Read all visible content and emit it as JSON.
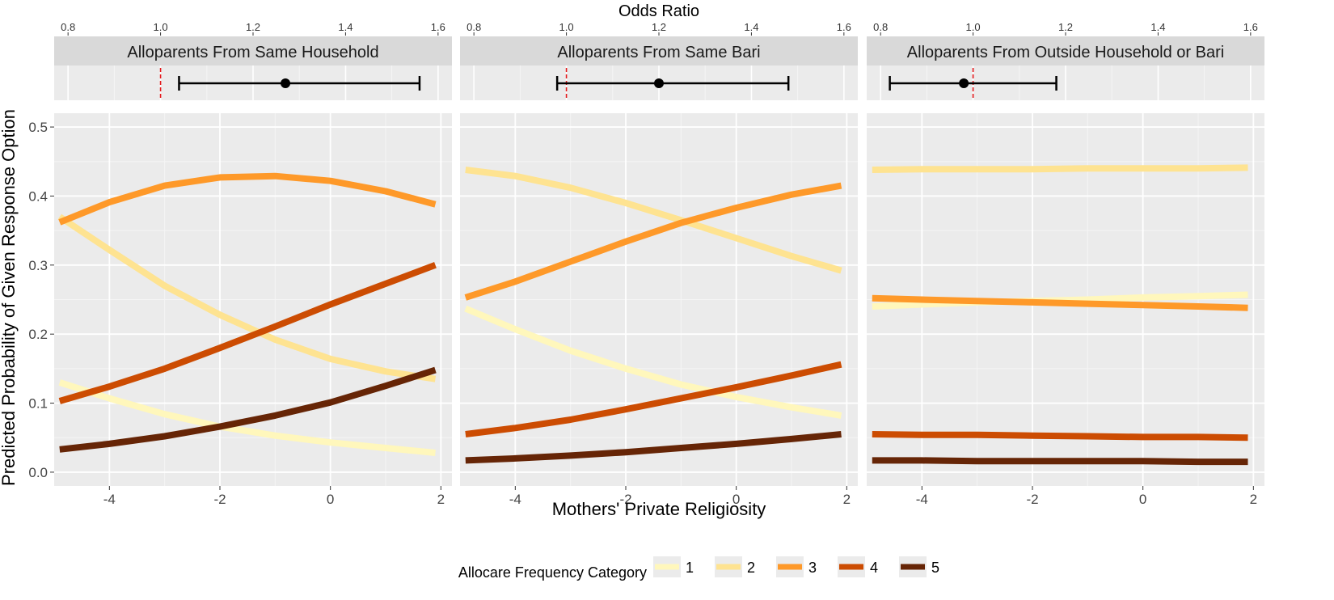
{
  "chart_data": {
    "type": "line",
    "top_axis_title": "Odds Ratio",
    "xlabel": "Mothers' Private Religiosity",
    "ylabel": "Predicted Probability of Given Response Option",
    "or_ticks": [
      0.8,
      1.0,
      1.2,
      1.4,
      1.6
    ],
    "or_tick_labels": [
      "0.8",
      "1.0",
      "1.2",
      "1.4",
      "1.6"
    ],
    "or_reference": 1.0,
    "x_ticks": [
      -4,
      -2,
      0,
      2
    ],
    "x_tick_labels": [
      "-4",
      "-2",
      "0",
      "2"
    ],
    "y_ticks": [
      0.0,
      0.1,
      0.2,
      0.3,
      0.4,
      0.5
    ],
    "y_tick_labels": [
      "0.0",
      "0.1",
      "0.2",
      "0.3",
      "0.4",
      "0.5"
    ],
    "xlim": [
      -5.0,
      2.2
    ],
    "ylim": [
      -0.02,
      0.52
    ],
    "x": [
      -4.9,
      -4.0,
      -3.0,
      -2.0,
      -1.0,
      0.0,
      1.0,
      1.9
    ],
    "legend": {
      "title": "Allocare Frequency Category",
      "position": "bottom",
      "items": [
        {
          "label": "1",
          "color": "#fff7bc"
        },
        {
          "label": "2",
          "color": "#fee391"
        },
        {
          "label": "3",
          "color": "#fe9929"
        },
        {
          "label": "4",
          "color": "#cc4c02"
        },
        {
          "label": "5",
          "color": "#662506"
        }
      ]
    },
    "panels": [
      {
        "title": "Alloparents From Same Household",
        "odds_ratio": {
          "estimate": 1.27,
          "lower": 1.04,
          "upper": 1.56
        },
        "series": [
          {
            "name": "1",
            "color": "#fff7bc",
            "values": [
              0.13,
              0.107,
              0.084,
              0.066,
              0.053,
              0.043,
              0.035,
              0.028
            ]
          },
          {
            "name": "2",
            "color": "#fee391",
            "values": [
              0.37,
              0.322,
              0.27,
              0.228,
              0.192,
              0.164,
              0.146,
              0.135
            ]
          },
          {
            "name": "3",
            "color": "#fe9929",
            "values": [
              0.362,
              0.391,
              0.415,
              0.427,
              0.429,
              0.422,
              0.407,
              0.388
            ]
          },
          {
            "name": "4",
            "color": "#cc4c02",
            "values": [
              0.103,
              0.124,
              0.15,
              0.18,
              0.211,
              0.243,
              0.273,
              0.3
            ]
          },
          {
            "name": "5",
            "color": "#662506",
            "values": [
              0.033,
              0.041,
              0.052,
              0.066,
              0.082,
              0.101,
              0.125,
              0.148
            ]
          }
        ]
      },
      {
        "title": "Alloparents From Same Bari",
        "odds_ratio": {
          "estimate": 1.2,
          "lower": 0.98,
          "upper": 1.48
        },
        "series": [
          {
            "name": "1",
            "color": "#fff7bc",
            "values": [
              0.237,
              0.207,
              0.176,
              0.15,
              0.127,
              0.109,
              0.094,
              0.082
            ]
          },
          {
            "name": "2",
            "color": "#fee391",
            "values": [
              0.438,
              0.429,
              0.412,
              0.39,
              0.365,
              0.339,
              0.313,
              0.292
            ]
          },
          {
            "name": "3",
            "color": "#fe9929",
            "values": [
              0.253,
              0.276,
              0.305,
              0.334,
              0.361,
              0.383,
              0.402,
              0.415
            ]
          },
          {
            "name": "4",
            "color": "#cc4c02",
            "values": [
              0.055,
              0.064,
              0.076,
              0.091,
              0.107,
              0.123,
              0.14,
              0.156
            ]
          },
          {
            "name": "5",
            "color": "#662506",
            "values": [
              0.017,
              0.02,
              0.024,
              0.029,
              0.035,
              0.041,
              0.048,
              0.055
            ]
          }
        ]
      },
      {
        "title": "Alloparents From Outside Household or Bari",
        "odds_ratio": {
          "estimate": 0.98,
          "lower": 0.82,
          "upper": 1.18
        },
        "series": [
          {
            "name": "1",
            "color": "#fff7bc",
            "values": [
              0.24,
              0.243,
              0.246,
              0.248,
              0.25,
              0.253,
              0.255,
              0.257
            ]
          },
          {
            "name": "2",
            "color": "#fee391",
            "values": [
              0.438,
              0.439,
              0.439,
              0.439,
              0.44,
              0.44,
              0.44,
              0.441
            ]
          },
          {
            "name": "3",
            "color": "#fe9929",
            "values": [
              0.252,
              0.25,
              0.248,
              0.246,
              0.244,
              0.242,
              0.24,
              0.238
            ]
          },
          {
            "name": "4",
            "color": "#cc4c02",
            "values": [
              0.055,
              0.054,
              0.054,
              0.053,
              0.052,
              0.051,
              0.051,
              0.05
            ]
          },
          {
            "name": "5",
            "color": "#662506",
            "values": [
              0.017,
              0.017,
              0.016,
              0.016,
              0.016,
              0.016,
              0.015,
              0.015
            ]
          }
        ]
      }
    ]
  }
}
